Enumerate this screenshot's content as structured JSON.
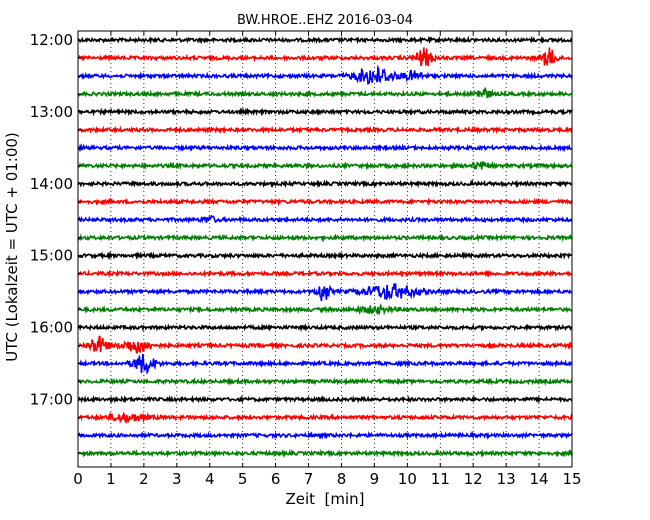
{
  "chart_data": {
    "type": "line",
    "chart_kind": "helicorder",
    "title": "BW.HROE..EHZ 2016-03-04",
    "xlabel": "Zeit  [min]",
    "ylabel": "UTC (Lokalzeit = UTC + 01:00)",
    "xlim": [
      0,
      15
    ],
    "x_ticks": [
      "0",
      "1",
      "2",
      "3",
      "4",
      "5",
      "6",
      "7",
      "8",
      "9",
      "10",
      "11",
      "12",
      "13",
      "14",
      "15"
    ],
    "y_tick_labels": [
      "12:00",
      "13:00",
      "14:00",
      "15:00",
      "16:00",
      "17:00"
    ],
    "grid": "vertical dotted at each minute",
    "trace_interval_minutes": 15,
    "trace_colors": [
      "#000000",
      "#ff0000",
      "#0000ff",
      "#008000"
    ],
    "traces": [
      {
        "start": "12:00",
        "color": "#000000",
        "events": []
      },
      {
        "start": "12:15",
        "color": "#ff0000",
        "events": [
          {
            "at": 10.5,
            "amp": 1.0,
            "width": 0.35
          },
          {
            "at": 14.3,
            "amp": 1.0,
            "width": 0.3
          }
        ]
      },
      {
        "start": "12:30",
        "color": "#0000ff",
        "events": [
          {
            "at": 9.0,
            "amp": 0.9,
            "width": 0.8
          },
          {
            "at": 10.2,
            "amp": 0.45,
            "width": 0.4
          }
        ]
      },
      {
        "start": "12:45",
        "color": "#008000",
        "events": [
          {
            "at": 12.3,
            "amp": 0.6,
            "width": 0.3
          }
        ]
      },
      {
        "start": "13:00",
        "color": "#000000",
        "events": []
      },
      {
        "start": "13:15",
        "color": "#ff0000",
        "events": []
      },
      {
        "start": "13:30",
        "color": "#0000ff",
        "events": []
      },
      {
        "start": "13:45",
        "color": "#008000",
        "events": [
          {
            "at": 12.2,
            "amp": 0.35,
            "width": 0.4
          }
        ]
      },
      {
        "start": "14:00",
        "color": "#000000",
        "events": []
      },
      {
        "start": "14:15",
        "color": "#ff0000",
        "events": []
      },
      {
        "start": "14:30",
        "color": "#0000ff",
        "events": [
          {
            "at": 4.0,
            "amp": 0.3,
            "width": 0.3
          }
        ]
      },
      {
        "start": "14:45",
        "color": "#008000",
        "events": []
      },
      {
        "start": "15:00",
        "color": "#000000",
        "events": []
      },
      {
        "start": "15:15",
        "color": "#ff0000",
        "events": []
      },
      {
        "start": "15:30",
        "color": "#0000ff",
        "events": [
          {
            "at": 7.45,
            "amp": 1.1,
            "width": 0.25
          },
          {
            "at": 9.5,
            "amp": 0.75,
            "width": 1.1
          }
        ]
      },
      {
        "start": "15:45",
        "color": "#008000",
        "events": [
          {
            "at": 9.0,
            "amp": 0.3,
            "width": 0.8
          }
        ]
      },
      {
        "start": "16:00",
        "color": "#000000",
        "events": []
      },
      {
        "start": "16:15",
        "color": "#ff0000",
        "events": [
          {
            "at": 0.6,
            "amp": 0.9,
            "width": 0.4
          },
          {
            "at": 1.8,
            "amp": 0.7,
            "width": 0.6
          }
        ]
      },
      {
        "start": "16:30",
        "color": "#0000ff",
        "events": [
          {
            "at": 2.0,
            "amp": 1.0,
            "width": 0.45
          }
        ]
      },
      {
        "start": "16:45",
        "color": "#008000",
        "events": []
      },
      {
        "start": "17:00",
        "color": "#000000",
        "events": []
      },
      {
        "start": "17:15",
        "color": "#ff0000",
        "events": [
          {
            "at": 1.5,
            "amp": 0.4,
            "width": 0.8
          }
        ]
      },
      {
        "start": "17:30",
        "color": "#0000ff",
        "events": []
      },
      {
        "start": "17:45",
        "color": "#008000",
        "events": []
      }
    ]
  }
}
